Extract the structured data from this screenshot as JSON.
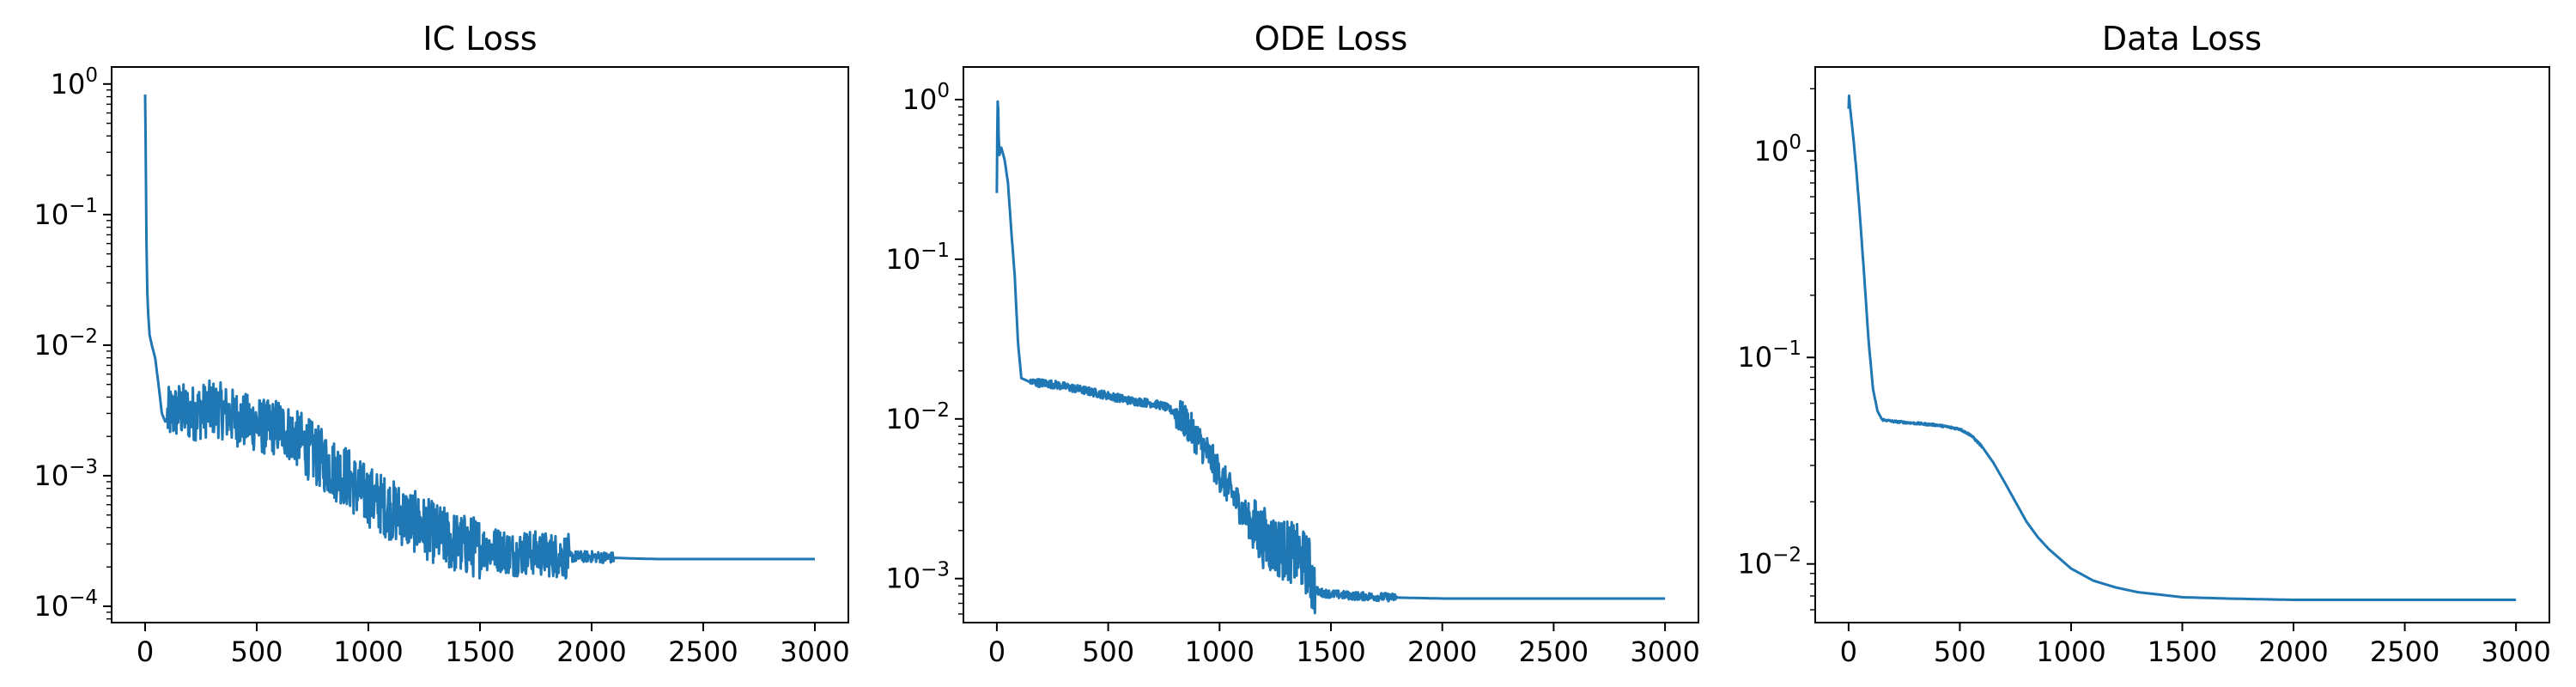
{
  "chart_data": [
    {
      "type": "line",
      "title": "IC Loss",
      "yscale": "log",
      "xlim": [
        -150,
        3150
      ],
      "ylim": [
        7.5e-05,
        1.35
      ],
      "xticks": [
        0,
        500,
        1000,
        1500,
        2000,
        2500,
        3000
      ],
      "yticks": [
        {
          "value": 0.0001,
          "base": "10",
          "exp": "−4"
        },
        {
          "value": 0.001,
          "base": "10",
          "exp": "−3"
        },
        {
          "value": 0.01,
          "base": "10",
          "exp": "−2"
        },
        {
          "value": 0.1,
          "base": "10",
          "exp": "−1"
        },
        {
          "value": 1,
          "base": "10",
          "exp": "0"
        }
      ],
      "color": "#1f77b4",
      "series": [
        {
          "x": [
            0,
            3,
            6,
            10,
            15,
            20,
            30,
            45,
            60,
            75,
            90,
            110,
            130,
            150,
            200,
            250,
            300,
            350,
            400,
            450,
            500,
            550,
            600,
            650,
            700,
            750,
            800,
            850,
            900,
            950,
            1000,
            1100,
            1200,
            1300,
            1400,
            1500,
            1600,
            1650,
            1700,
            1800,
            1900,
            2000,
            2100,
            2200,
            2300,
            2400,
            2600,
            2800,
            3000
          ],
          "y": [
            0.83,
            0.3,
            0.06,
            0.025,
            0.016,
            0.012,
            0.01,
            0.008,
            0.005,
            0.003,
            0.0026,
            0.003,
            0.003,
            0.0032,
            0.003,
            0.0031,
            0.0033,
            0.0031,
            0.0028,
            0.0026,
            0.0025,
            0.0023,
            0.0024,
            0.0021,
            0.0018,
            0.0015,
            0.0013,
            0.0011,
            0.001,
            0.0008,
            0.0007,
            0.00055,
            0.00045,
            0.00036,
            0.0003,
            0.00028,
            0.00027,
            0.00025,
            0.00026,
            0.00025,
            0.00024,
            0.00024,
            0.000235,
            0.000232,
            0.00023,
            0.00023,
            0.00023,
            0.00023,
            0.00023
          ],
          "noise": [
            {
              "x0": 100,
              "x1": 700,
              "amp": 0.5
            },
            {
              "x0": 700,
              "x1": 1500,
              "amp": 0.55
            },
            {
              "x0": 1500,
              "x1": 1900,
              "amp": 0.4
            },
            {
              "x0": 1900,
              "x1": 2100,
              "amp": 0.1
            }
          ]
        }
      ]
    },
    {
      "type": "line",
      "title": "ODE Loss",
      "yscale": "log",
      "xlim": [
        -150,
        3150
      ],
      "ylim": [
        0.00053,
        1.6
      ],
      "xticks": [
        0,
        500,
        1000,
        1500,
        2000,
        2500,
        3000
      ],
      "yticks": [
        {
          "value": 0.001,
          "base": "10",
          "exp": "−3"
        },
        {
          "value": 0.01,
          "base": "10",
          "exp": "−2"
        },
        {
          "value": 0.1,
          "base": "10",
          "exp": "−1"
        },
        {
          "value": 1,
          "base": "10",
          "exp": "0"
        }
      ],
      "color": "#1f77b4",
      "series": [
        {
          "x": [
            0,
            3,
            5,
            8,
            12,
            20,
            35,
            50,
            65,
            80,
            95,
            110,
            130,
            150,
            200,
            250,
            300,
            400,
            500,
            600,
            700,
            750,
            800,
            850,
            900,
            950,
            1000,
            1050,
            1100,
            1150,
            1200,
            1250,
            1300,
            1350,
            1400,
            1420,
            1430,
            1450,
            1500,
            1600,
            1800,
            2000,
            2200,
            2500,
            3000
          ],
          "y": [
            0.26,
            0.9,
            1.05,
            0.6,
            0.45,
            0.5,
            0.42,
            0.3,
            0.15,
            0.08,
            0.03,
            0.018,
            0.0175,
            0.017,
            0.0168,
            0.0165,
            0.016,
            0.015,
            0.014,
            0.013,
            0.0125,
            0.012,
            0.011,
            0.0095,
            0.0075,
            0.006,
            0.0045,
            0.0035,
            0.0027,
            0.0021,
            0.0018,
            0.0016,
            0.0015,
            0.0014,
            0.0012,
            0.0009,
            0.00085,
            0.00082,
            0.0008,
            0.00078,
            0.00076,
            0.00075,
            0.00075,
            0.00075,
            0.00075
          ],
          "noise": [
            {
              "x0": 150,
              "x1": 800,
              "amp": 0.06
            },
            {
              "x0": 800,
              "x1": 1150,
              "amp": 0.25
            },
            {
              "x0": 1150,
              "x1": 1430,
              "amp": 0.45
            },
            {
              "x0": 1430,
              "x1": 1800,
              "amp": 0.06
            }
          ]
        }
      ]
    },
    {
      "type": "line",
      "title": "Data Loss",
      "yscale": "log",
      "xlim": [
        -150,
        3150
      ],
      "ylim": [
        0.0052,
        2.55
      ],
      "xticks": [
        0,
        500,
        1000,
        1500,
        2000,
        2500,
        3000
      ],
      "yticks": [
        {
          "value": 0.01,
          "base": "10",
          "exp": "−2"
        },
        {
          "value": 0.1,
          "base": "10",
          "exp": "−1"
        },
        {
          "value": 1,
          "base": "10",
          "exp": "0"
        }
      ],
      "color": "#1f77b4",
      "series": [
        {
          "x": [
            0,
            2,
            5,
            10,
            20,
            35,
            50,
            70,
            90,
            110,
            130,
            150,
            200,
            300,
            400,
            500,
            550,
            600,
            650,
            700,
            750,
            800,
            850,
            900,
            1000,
            1100,
            1200,
            1300,
            1400,
            1500,
            1700,
            2000,
            2500,
            3000
          ],
          "y": [
            1.6,
            1.85,
            1.7,
            1.5,
            1.2,
            0.8,
            0.5,
            0.25,
            0.12,
            0.07,
            0.055,
            0.05,
            0.049,
            0.048,
            0.047,
            0.045,
            0.042,
            0.037,
            0.031,
            0.025,
            0.02,
            0.016,
            0.0135,
            0.0118,
            0.0095,
            0.0083,
            0.0077,
            0.0073,
            0.0071,
            0.0069,
            0.0068,
            0.0067,
            0.0067,
            0.0067
          ],
          "noise": [
            {
              "x0": 150,
              "x1": 600,
              "amp": 0.012
            }
          ]
        }
      ]
    }
  ]
}
